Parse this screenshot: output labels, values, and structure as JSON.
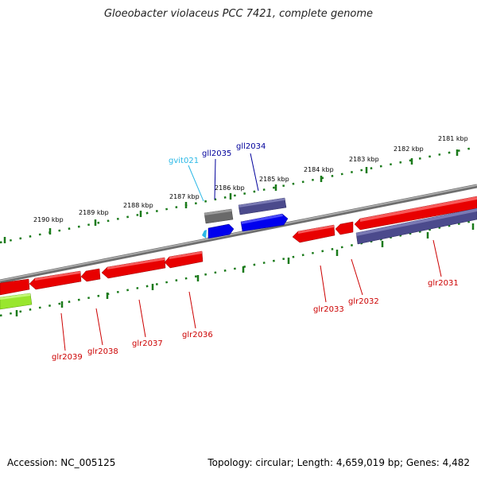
{
  "title": "Gloeobacter violaceus PCC 7421, complete genome",
  "footer": {
    "accession": "Accession: NC_005125",
    "topology": "Topology: circular; Length: 4,659,019 bp; Genes: 4,482"
  },
  "colors": {
    "forward_gene": "#ff1a1a",
    "reverse_gene": "#e30000",
    "blue_gene": "#0000ee",
    "purple_gene": "#4b4a8c",
    "gray_gene": "#6a6a6a",
    "green_gene": "#99e62e",
    "ruler": "#1a7a1a",
    "backbone": "#7a7a7a",
    "forward_label": "#00009b",
    "reverse_label": "#cc0000",
    "trna_label": "#2ab8e6"
  },
  "ruler_labels": [
    "2181 kbp",
    "2182 kbp",
    "2183 kbp",
    "2184 kbp",
    "2185 kbp",
    "2186 kbp",
    "2187 kbp",
    "2188 kbp",
    "2189 kbp",
    "2190 kbp"
  ],
  "forward_genes": [
    {
      "label": "gll2034",
      "kind": "purple"
    },
    {
      "label": "gll2035",
      "kind": "gray"
    },
    {
      "label": "gvit021",
      "kind": "trna"
    }
  ],
  "reverse_genes": [
    {
      "label": "glr2031"
    },
    {
      "label": "glr2032"
    },
    {
      "label": "glr2033"
    },
    {
      "label": "glr2036"
    },
    {
      "label": "glr2037"
    },
    {
      "label": "glr2038"
    },
    {
      "label": "glr2039"
    }
  ]
}
